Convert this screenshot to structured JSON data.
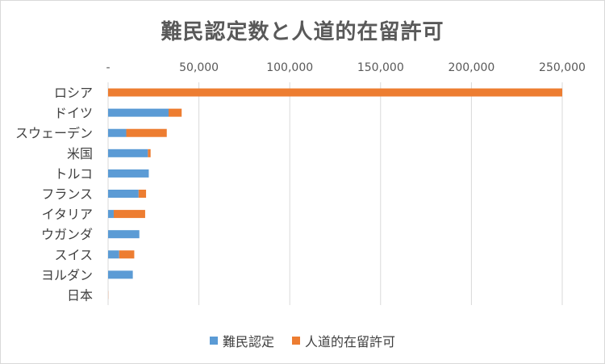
{
  "chart_data": {
    "type": "bar",
    "orientation": "horizontal",
    "stacked": true,
    "title": "難民認定数と人道的在留許可",
    "categories": [
      "ロシア",
      "ドイツ",
      "スウェーデン",
      "米国",
      "トルコ",
      "フランス",
      "イタリア",
      "ウガンダ",
      "スイス",
      "ヨルダン",
      "日本"
    ],
    "series": [
      {
        "name": "難民認定",
        "color": "#5b9bd5",
        "values": [
          0,
          33300,
          10000,
          21900,
          22400,
          16800,
          3100,
          17200,
          6100,
          13600,
          11
        ]
      },
      {
        "name": "人道的在留許可",
        "color": "#ed7d31",
        "values": [
          250000,
          7200,
          22300,
          1500,
          0,
          4100,
          17300,
          0,
          8300,
          0,
          79
        ]
      }
    ],
    "xlim": [
      0,
      250000
    ],
    "ticks": [
      "-",
      "50,000",
      "100,000",
      "150,000",
      "200,000",
      "250,000"
    ],
    "tick_values": [
      0,
      50000,
      100000,
      150000,
      200000,
      250000
    ],
    "gridlines": true,
    "legend_position": "bottom"
  }
}
